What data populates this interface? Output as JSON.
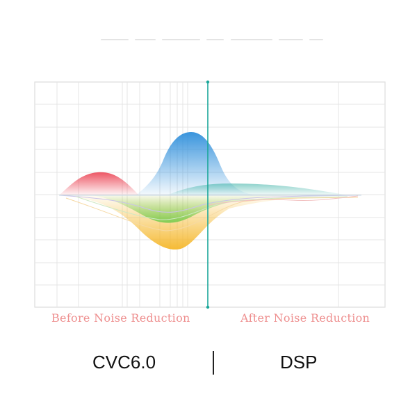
{
  "labels": {
    "before": "Before Noise Reduction",
    "after": "After Noise Reduction",
    "tech_left": "CVC6.0",
    "tech_right": "DSP"
  },
  "colors": {
    "red": "#ec5a66",
    "blue": "#3d97dd",
    "green": "#7bcf5a",
    "yellow": "#f5b936",
    "teal": "#55bdb2",
    "divider": "#1aa79a",
    "caption": "#ee8f8f",
    "grid": "#dddddd"
  }
}
